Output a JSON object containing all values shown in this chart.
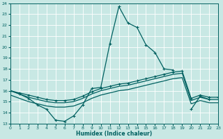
{
  "xlabel": "Humidex (Indice chaleur)",
  "color": "#006060",
  "bg_color": "#c8e8e4",
  "grid_color": "#ffffff",
  "ylim": [
    13,
    24
  ],
  "xlim": [
    0,
    23
  ],
  "x": [
    0,
    1,
    2,
    3,
    4,
    5,
    6,
    7,
    8,
    9,
    10,
    11,
    12,
    13,
    14,
    15,
    16,
    17,
    18,
    19,
    20,
    21,
    22,
    23
  ],
  "line_main": [
    16.0,
    15.7,
    15.3,
    14.7,
    14.3,
    13.3,
    13.2,
    13.7,
    14.7,
    16.2,
    16.3,
    20.3,
    23.7,
    22.2,
    21.8,
    20.2,
    19.5,
    18.0,
    17.9,
    null,
    14.3,
    15.5,
    15.2,
    null
  ],
  "line_upper": [
    16.0,
    15.8,
    15.6,
    15.4,
    15.2,
    15.1,
    15.1,
    15.2,
    15.5,
    15.9,
    16.2,
    16.4,
    16.6,
    16.7,
    16.9,
    17.1,
    17.3,
    17.5,
    17.7,
    17.8,
    15.3,
    15.6,
    15.4,
    15.4
  ],
  "line_mid": [
    16.0,
    15.7,
    15.4,
    15.2,
    15.0,
    14.9,
    14.9,
    15.0,
    15.3,
    15.7,
    16.0,
    16.2,
    16.4,
    16.5,
    16.7,
    16.9,
    17.1,
    17.3,
    17.5,
    17.6,
    15.1,
    15.4,
    15.2,
    15.2
  ],
  "line_lower": [
    15.6,
    15.3,
    15.0,
    14.8,
    14.6,
    14.5,
    14.5,
    14.6,
    14.9,
    15.3,
    15.6,
    15.8,
    16.0,
    16.1,
    16.3,
    16.5,
    16.7,
    16.9,
    17.1,
    17.2,
    14.8,
    15.1,
    14.9,
    14.9
  ]
}
